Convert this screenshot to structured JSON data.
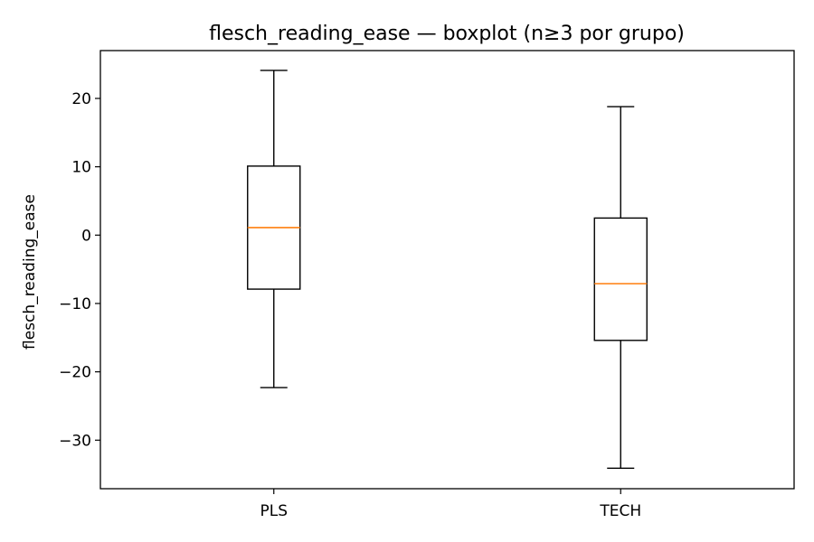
{
  "chart_data": {
    "type": "boxplot",
    "title": "flesch_reading_ease — boxplot (n≥3 por grupo)",
    "xlabel": "",
    "ylabel": "flesch_reading_ease",
    "ylim": [
      -37.1,
      27.0
    ],
    "yticks": [
      20,
      10,
      0,
      -10,
      -20,
      -30
    ],
    "ytick_labels": [
      "20",
      "10",
      "0",
      "−10",
      "−20",
      "−30"
    ],
    "categories": [
      "PLS",
      "TECH"
    ],
    "boxes": [
      {
        "name": "PLS",
        "whisker_low": -22.3,
        "q1": -7.9,
        "median": 1.1,
        "q3": 10.1,
        "whisker_high": 24.1
      },
      {
        "name": "TECH",
        "whisker_low": -34.1,
        "q1": -15.4,
        "median": -7.1,
        "q3": 2.5,
        "whisker_high": 18.8
      }
    ],
    "grid": false,
    "colors": {
      "box": "#000000",
      "median": "#ff7f0e"
    }
  }
}
